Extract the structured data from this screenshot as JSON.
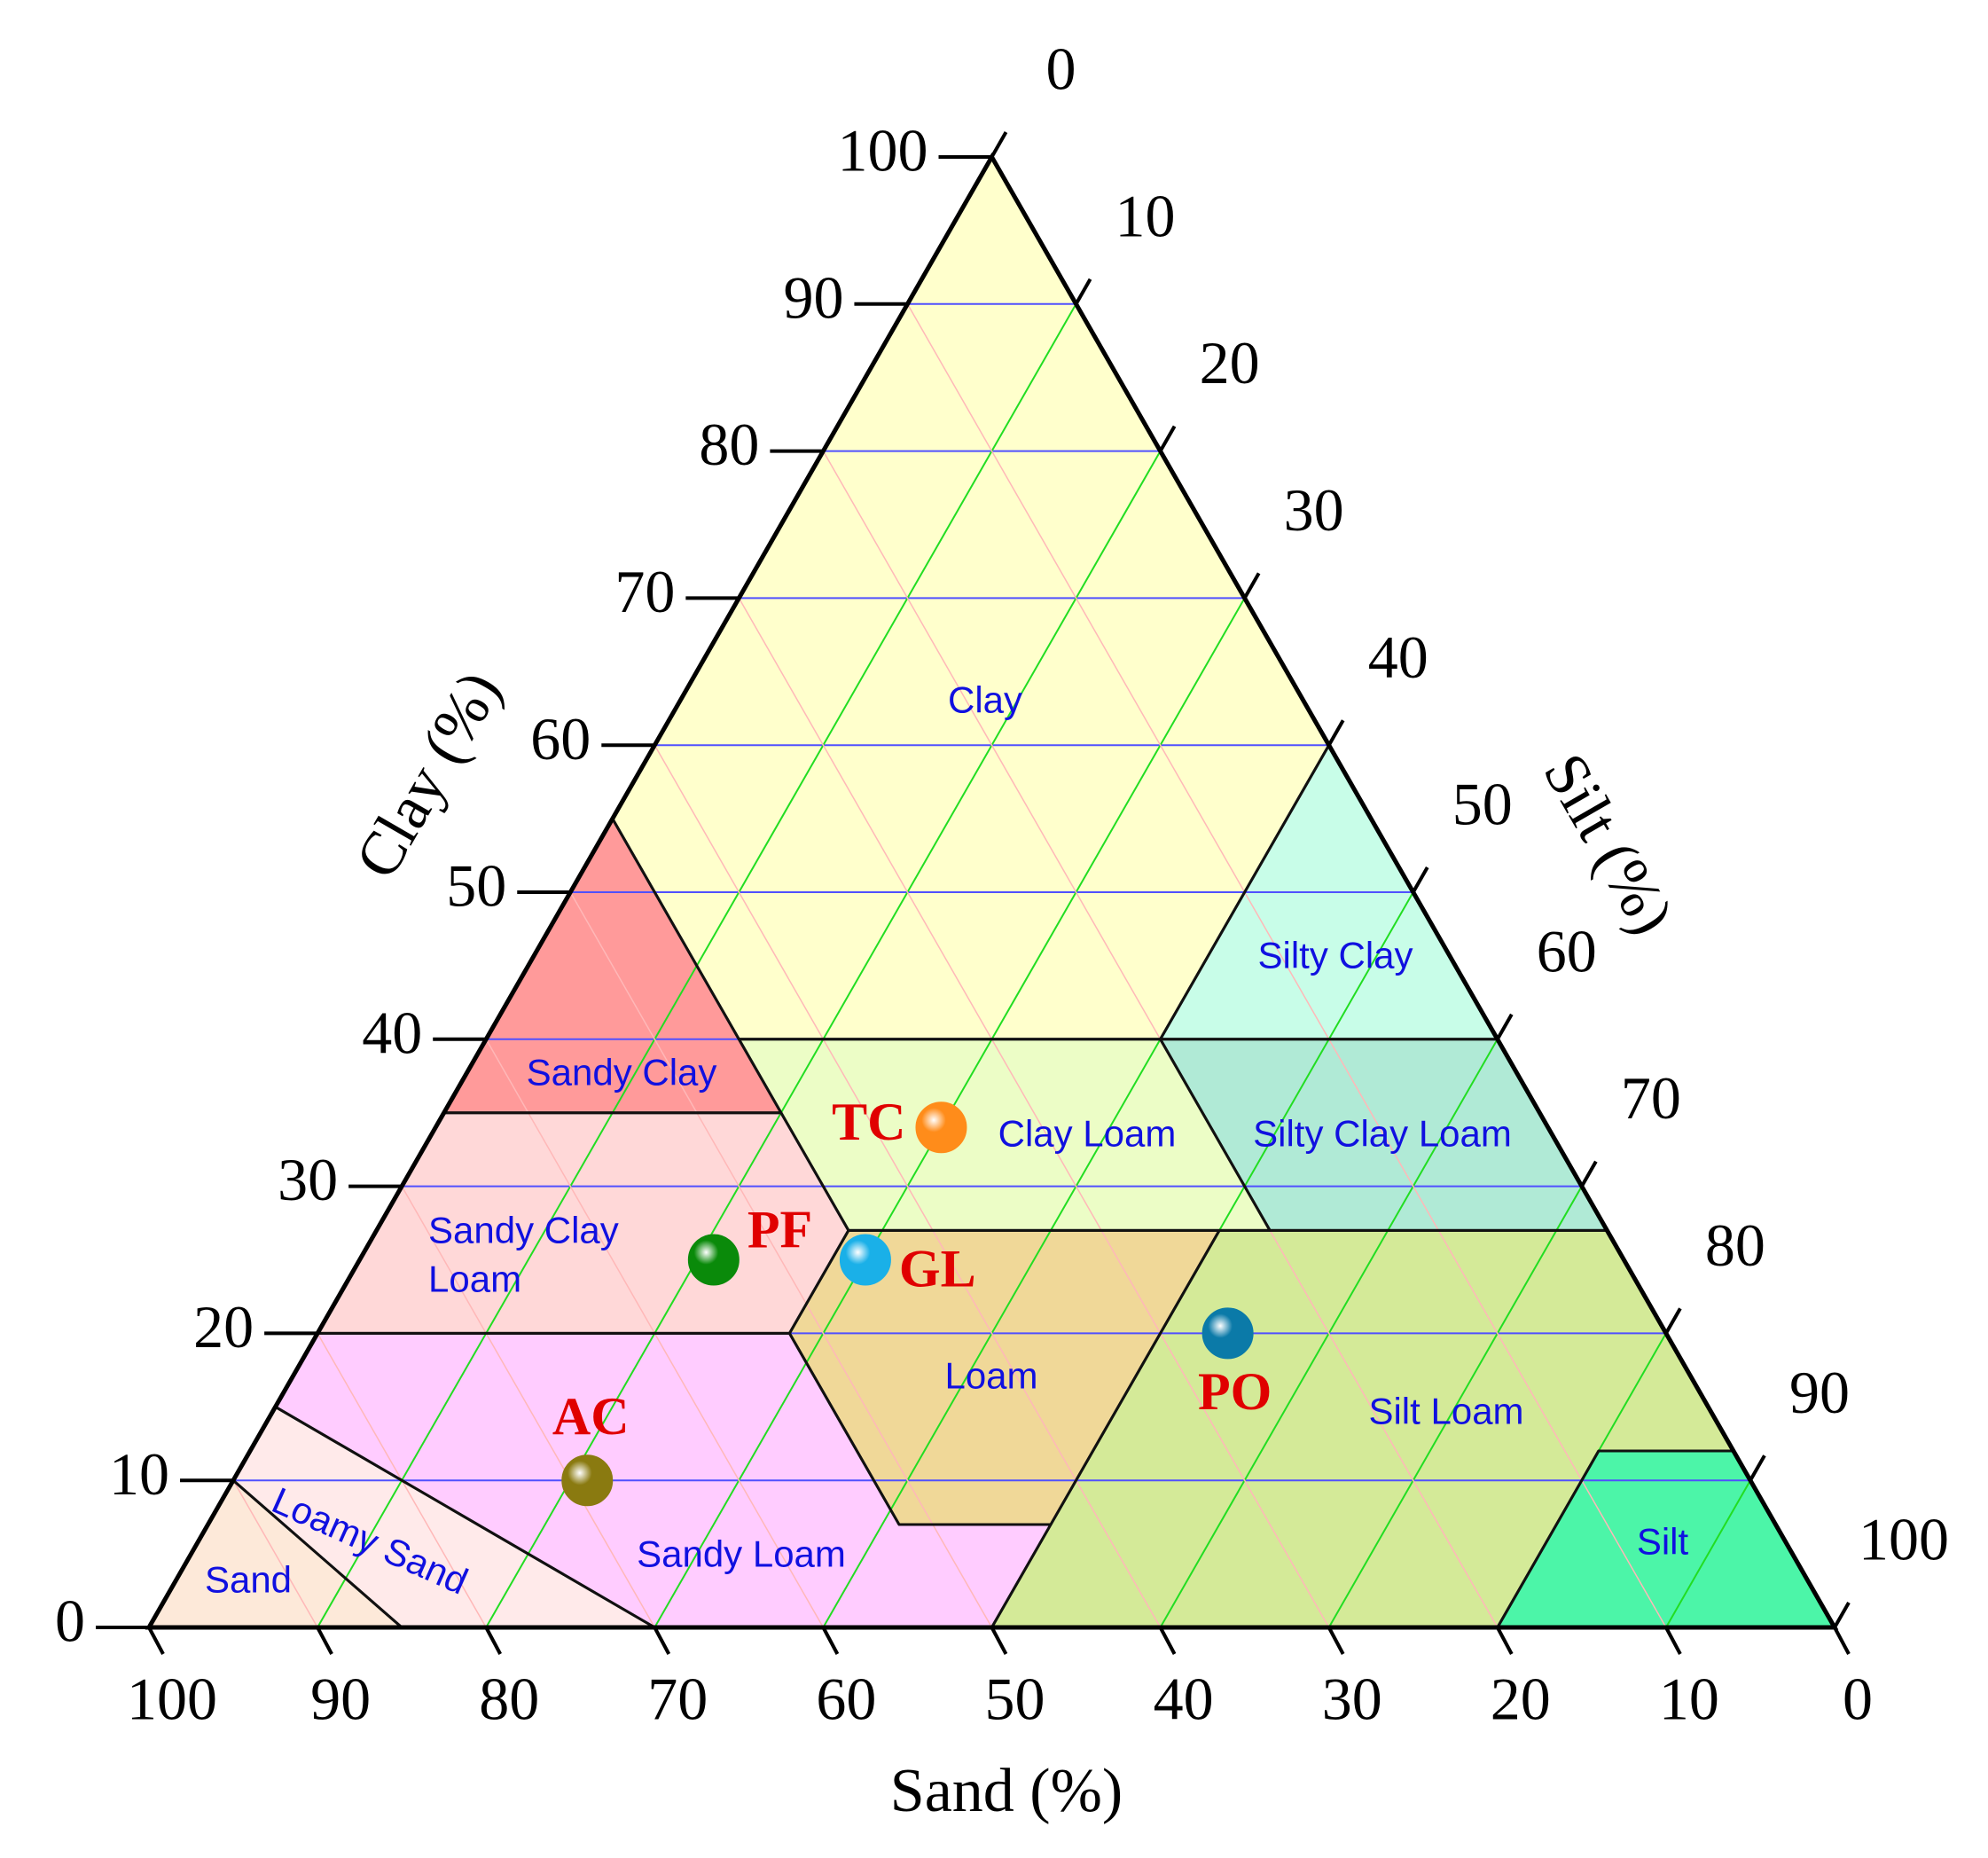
{
  "chart_data": {
    "type": "ternary",
    "axes": {
      "clay": {
        "label": "Clay (%)",
        "ticks": [
          0,
          10,
          20,
          30,
          40,
          50,
          60,
          70,
          80,
          90,
          100
        ]
      },
      "silt": {
        "label": "Silt (%)",
        "ticks": [
          0,
          10,
          20,
          30,
          40,
          50,
          60,
          70,
          80,
          90,
          100
        ]
      },
      "sand": {
        "label": "Sand (%)",
        "ticks": [
          0,
          10,
          20,
          30,
          40,
          50,
          60,
          70,
          80,
          90,
          100
        ]
      }
    },
    "grid": true,
    "regions": [
      {
        "name": "Clay",
        "color": "#ffffcc",
        "vertices": [
          [
            0,
            0,
            100
          ],
          [
            45,
            0,
            55
          ],
          [
            45,
            15,
            40
          ],
          [
            20,
            40,
            40
          ],
          [
            0,
            40,
            60
          ]
        ]
      },
      {
        "name": "Silty Clay",
        "color": "#c8fde8",
        "vertices": [
          [
            0,
            40,
            60
          ],
          [
            20,
            40,
            40
          ],
          [
            0,
            60,
            40
          ]
        ]
      },
      {
        "name": "Sandy Clay",
        "color": "#ff9a9a",
        "vertices": [
          [
            45,
            0,
            55
          ],
          [
            65,
            0,
            35
          ],
          [
            45,
            20,
            35
          ]
        ]
      },
      {
        "name": "Clay Loam",
        "color": "#ecfdc6",
        "vertices": [
          [
            45,
            15,
            40
          ],
          [
            20,
            40,
            40
          ],
          [
            20,
            53,
            27
          ],
          [
            45,
            28,
            27
          ],
          [
            45,
            20,
            35
          ]
        ]
      },
      {
        "name": "Silty Clay Loam",
        "color": "#b0ead6",
        "vertices": [
          [
            20,
            40,
            40
          ],
          [
            0,
            60,
            40
          ],
          [
            0,
            73,
            27
          ],
          [
            20,
            53,
            27
          ]
        ]
      },
      {
        "name": "Sandy Clay Loam",
        "color": "#ffd8d8",
        "vertices": [
          [
            65,
            0,
            35
          ],
          [
            45,
            20,
            35
          ],
          [
            45,
            28,
            27
          ],
          [
            52,
            28,
            20
          ],
          [
            80,
            0,
            20
          ]
        ]
      },
      {
        "name": "Loam",
        "color": "#f0d898",
        "vertices": [
          [
            45,
            28,
            27
          ],
          [
            23,
            50,
            27
          ],
          [
            43,
            50,
            7
          ],
          [
            52,
            41,
            7
          ],
          [
            52,
            28,
            20
          ]
        ]
      },
      {
        "name": "Silt Loam",
        "color": "#d4ea98",
        "vertices": [
          [
            23,
            50,
            27
          ],
          [
            0,
            73,
            27
          ],
          [
            0,
            88,
            12
          ],
          [
            8,
            80,
            12
          ],
          [
            20,
            80,
            0
          ],
          [
            50,
            50,
            0
          ],
          [
            43,
            50,
            7
          ]
        ]
      },
      {
        "name": "Silt",
        "color": "#4cf5a8",
        "vertices": [
          [
            8,
            80,
            12
          ],
          [
            0,
            88,
            12
          ],
          [
            0,
            100,
            0
          ],
          [
            20,
            80,
            0
          ]
        ]
      },
      {
        "name": "Sandy Loam",
        "color": "#ffccff",
        "vertices": [
          [
            80,
            0,
            20
          ],
          [
            52,
            28,
            20
          ],
          [
            52,
            41,
            7
          ],
          [
            43,
            50,
            7
          ],
          [
            50,
            50,
            0
          ],
          [
            70,
            30,
            0
          ],
          [
            85,
            0,
            15
          ]
        ]
      },
      {
        "name": "Loamy Sand",
        "color": "#ffeaea",
        "vertices": [
          [
            85,
            0,
            15
          ],
          [
            70,
            30,
            0
          ],
          [
            85,
            15,
            0
          ],
          [
            90,
            0,
            10
          ]
        ]
      },
      {
        "name": "Sand",
        "color": "#fde9d9",
        "vertices": [
          [
            90,
            0,
            10
          ],
          [
            85,
            15,
            0
          ],
          [
            100,
            0,
            0
          ]
        ]
      }
    ],
    "series": [
      {
        "name": "TC",
        "color": "#ff8c1a",
        "sand": 36,
        "silt": 30,
        "clay": 34
      },
      {
        "name": "PF",
        "color": "#0a8a0a",
        "sand": 54,
        "silt": 21,
        "clay": 25
      },
      {
        "name": "GL",
        "color": "#1ab0e8",
        "sand": 45,
        "silt": 30,
        "clay": 25
      },
      {
        "name": "PO",
        "color": "#0b7aa8",
        "sand": 26,
        "silt": 54,
        "clay": 20
      },
      {
        "name": "AC",
        "color": "#8a7a10",
        "sand": 69,
        "silt": 21,
        "clay": 10
      }
    ]
  }
}
